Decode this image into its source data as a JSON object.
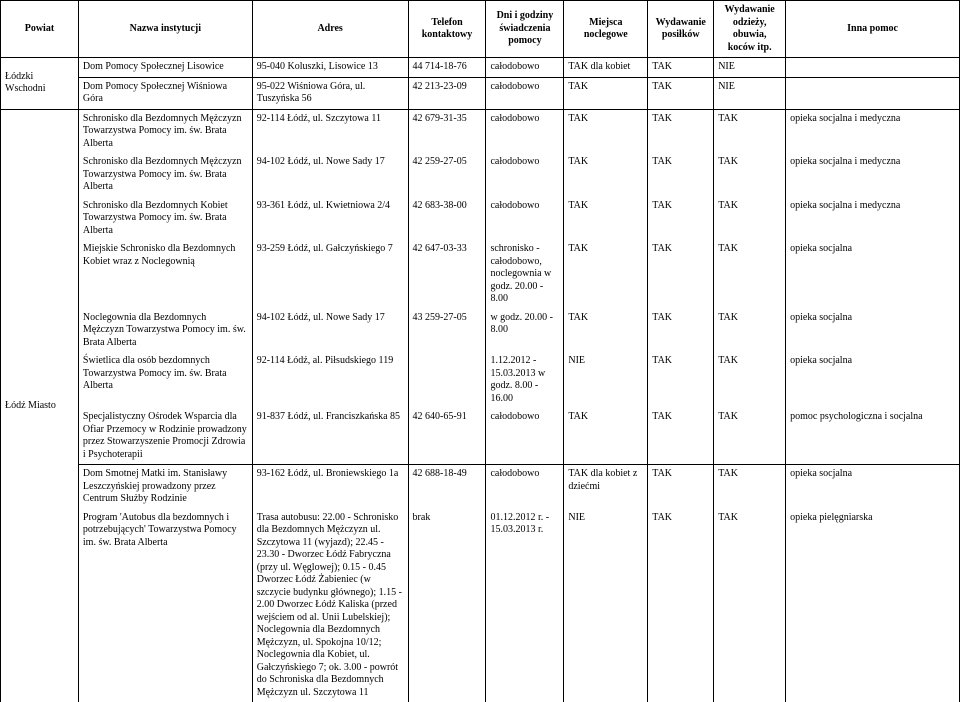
{
  "headers": {
    "powiat": "Powiat",
    "nazwa": "Nazwa instytucji",
    "adres": "Adres",
    "telefon": "Telefon kontaktowy",
    "dni": "Dni i godziny świadczenia pomocy",
    "nocleg": "Miejsca noclegowe",
    "posilki": "Wydawanie posiłków",
    "odziez": "Wydawanie odzieży, obuwia, koców itp.",
    "inna": "Inna pomoc"
  },
  "powiaty": {
    "lodzki_wschodni": "Łódzki Wschodni",
    "lodz_miasto": "Łódź Miasto"
  },
  "rows": [
    {
      "nazwa": "Dom Pomocy Społecznej Lisowice",
      "adres": "95-040 Koluszki, Lisowice 13",
      "telefon": "44 714-18-76",
      "dni": "całodobowo",
      "nocleg": "TAK dla kobiet",
      "posilki": "TAK",
      "odziez": "NIE",
      "inna": ""
    },
    {
      "nazwa": "Dom Pomocy Społecznej Wiśniowa Góra",
      "adres": "95-022 Wiśniowa Góra, ul. Tuszyńska 56",
      "telefon": "42 213-23-09",
      "dni": "całodobowo",
      "nocleg": "TAK",
      "posilki": "TAK",
      "odziez": "NIE",
      "inna": ""
    },
    {
      "nazwa": "Schronisko dla Bezdomnych Mężczyzn Towarzystwa Pomocy im. św. Brata Alberta",
      "adres": "92-114 Łódź, ul. Szczytowa 11",
      "telefon": "42 679-31-35",
      "dni": "całodobowo",
      "nocleg": "TAK",
      "posilki": "TAK",
      "odziez": "TAK",
      "inna": "opieka socjalna i medyczna"
    },
    {
      "nazwa": "Schronisko dla Bezdomnych Mężczyzn Towarzystwa Pomocy im. św. Brata Alberta",
      "adres": "94-102 Łódź, ul. Nowe Sady 17",
      "telefon": "42 259-27-05",
      "dni": "całodobowo",
      "nocleg": "TAK",
      "posilki": "TAK",
      "odziez": "TAK",
      "inna": "opieka socjalna i medyczna"
    },
    {
      "nazwa": "Schronisko dla Bezdomnych Kobiet Towarzystwa Pomocy im. św. Brata Alberta",
      "adres": "93-361 Łódź, ul. Kwietniowa 2/4",
      "telefon": "42 683-38-00",
      "dni": "całodobowo",
      "nocleg": "TAK",
      "posilki": "TAK",
      "odziez": "TAK",
      "inna": "opieka socjalna i medyczna"
    },
    {
      "nazwa": "Miejskie Schronisko dla Bezdomnych Kobiet wraz z Noclegownią",
      "adres": "93-259 Łódź, ul. Gałczyńskiego 7",
      "telefon": "42 647-03-33",
      "dni": "schronisko - całodobowo, noclegownia w godz. 20.00 - 8.00",
      "nocleg": "TAK",
      "posilki": "TAK",
      "odziez": "TAK",
      "inna": "opieka socjalna"
    },
    {
      "nazwa": "Noclegownia dla Bezdomnych Mężczyzn Towarzystwa Pomocy im. św. Brata Alberta",
      "adres": "94-102 Łódź, ul. Nowe Sady 17",
      "telefon": "43 259-27-05",
      "dni": "w godz. 20.00 - 8.00",
      "nocleg": "TAK",
      "posilki": "TAK",
      "odziez": "TAK",
      "inna": "opieka socjalna"
    },
    {
      "nazwa": "Świetlica dla osób bezdomnych Towarzystwa Pomocy im. św. Brata Alberta",
      "adres": "92-114 Łódź, al. Piłsudskiego 119",
      "telefon": "",
      "dni": "1.12.2012 - 15.03.2013 w godz. 8.00 - 16.00",
      "nocleg": "NIE",
      "posilki": "TAK",
      "odziez": "TAK",
      "inna": "opieka socjalna"
    },
    {
      "nazwa": "Specjalistyczny Ośrodek Wsparcia dla Ofiar Przemocy w Rodzinie prowadzony przez Stowarzyszenie Promocji Zdrowia i Psychoterapii",
      "adres": "91-837 Łódź, ul. Franciszkańska 85",
      "telefon": "42 640-65-91",
      "dni": "całodobowo",
      "nocleg": "TAK",
      "posilki": "TAK",
      "odziez": "TAK",
      "inna": "pomoc psychologiczna i socjalna"
    },
    {
      "nazwa": "Dom Smotnej Matki im. Stanisławy Leszczyńskiej prowadzony przez Centrum Służby Rodzinie",
      "adres": "93-162 Łódź, ul. Broniewskiego 1a",
      "telefon": "42 688-18-49",
      "dni": "całodobowo",
      "nocleg": "TAK dla kobiet z dziećmi",
      "posilki": "TAK",
      "odziez": "TAK",
      "inna": "opieka socjalna"
    },
    {
      "nazwa": "Program 'Autobus dla bezdomnych i potrzebujących' Towarzystwa Pomocy im. św. Brata Alberta",
      "adres": "Trasa autobusu: 22.00 - Schronisko dla Bezdomnych Mężczyzn ul. Szczytowa 11 (wyjazd); 22.45 - 23.30 - Dworzec Łódź Fabryczna (przy ul. Węglowej); 0.15 - 0.45 Dworzec Łódź Żabieniec (w szczycie budynku głównego); 1.15 - 2.00 Dworzec Łódź Kaliska (przed wejściem od al. Unii Lubelskiej); Noclegownia dla Bezdomnych Mężczyzn, ul. Spokojna 10/12; Noclegownia dla Kobiet, ul. Gałczyńskiego 7; ok. 3.00 - powrót do Schroniska dla Bezdomnych Mężczyzn ul. Szczytowa 11",
      "telefon": "brak",
      "dni": "01.12.2012 r. - 15.03.2013 r.",
      "nocleg": "NIE",
      "posilki": "TAK",
      "odziez": "TAK",
      "inna": "opieka pielęgniarska"
    }
  ]
}
